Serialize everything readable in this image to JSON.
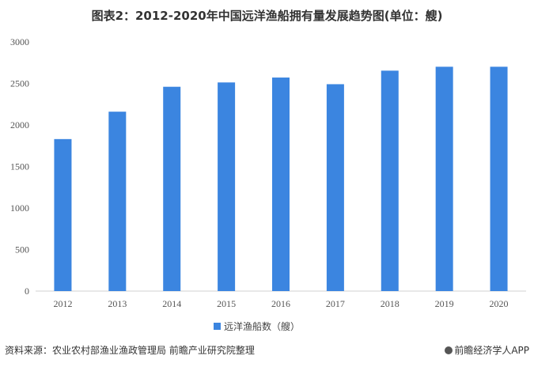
{
  "chart_data": {
    "type": "bar",
    "title": "图表2：2012-2020年中国远洋渔船拥有量发展趋势图(单位：艘)",
    "xlabel": "",
    "ylabel": "",
    "categories": [
      "2012",
      "2013",
      "2014",
      "2015",
      "2016",
      "2017",
      "2018",
      "2019",
      "2020"
    ],
    "series": [
      {
        "name": "远洋渔船数（艘）",
        "values": [
          1830,
          2160,
          2460,
          2512,
          2571,
          2491,
          2654,
          2701,
          2701
        ],
        "color": "#3b85e0"
      }
    ],
    "ylim": [
      0,
      3000
    ],
    "yticks": [
      "0",
      "500",
      "1000",
      "1500",
      "2000",
      "2500",
      "3000"
    ],
    "grid": false,
    "legend": "bottom-center"
  },
  "footer": {
    "source": "资料来源：农业农村部渔业渔政管理局 前瞻产业研究院整理",
    "brand": "前瞻经济学人APP",
    "brand_icon": "qianzhan-logo-icon"
  }
}
